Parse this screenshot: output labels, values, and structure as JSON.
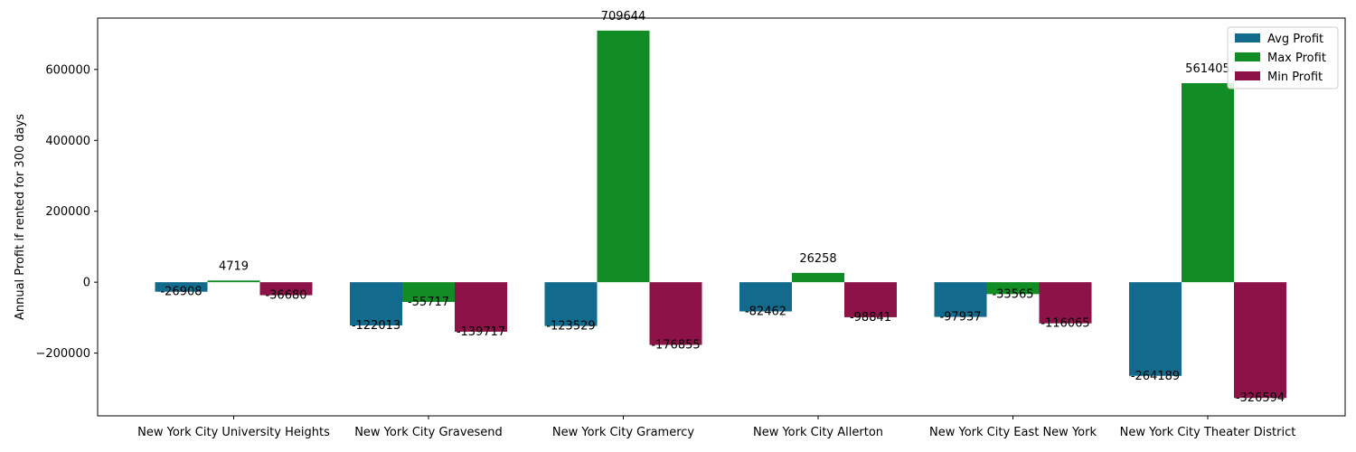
{
  "chart_data": {
    "type": "bar",
    "title": "",
    "xlabel": "",
    "ylabel": "Annual Profit if rented for 300 days",
    "categories": [
      "New York City University Heights",
      "New York City Gravesend",
      "New York City Gramercy",
      "New York City Allerton",
      "New York City East New York",
      "New York City Theater District"
    ],
    "series": [
      {
        "name": "Avg Profit",
        "color": "#126b8c",
        "values": [
          -26908,
          -122013,
          -123529,
          -82462,
          -97937,
          -264189
        ]
      },
      {
        "name": "Max Profit",
        "color": "#128c24",
        "values": [
          4719,
          -55717,
          709644,
          26258,
          -33565,
          561405
        ]
      },
      {
        "name": "Min Profit",
        "color": "#8c1248",
        "values": [
          -36680,
          -139717,
          -176855,
          -98841,
          -116065,
          -326594
        ]
      }
    ],
    "ylim": [
      -377000,
      745000
    ],
    "yticks": [
      -200000,
      0,
      200000,
      400000,
      600000
    ],
    "grid": false,
    "legend": "top-right"
  }
}
